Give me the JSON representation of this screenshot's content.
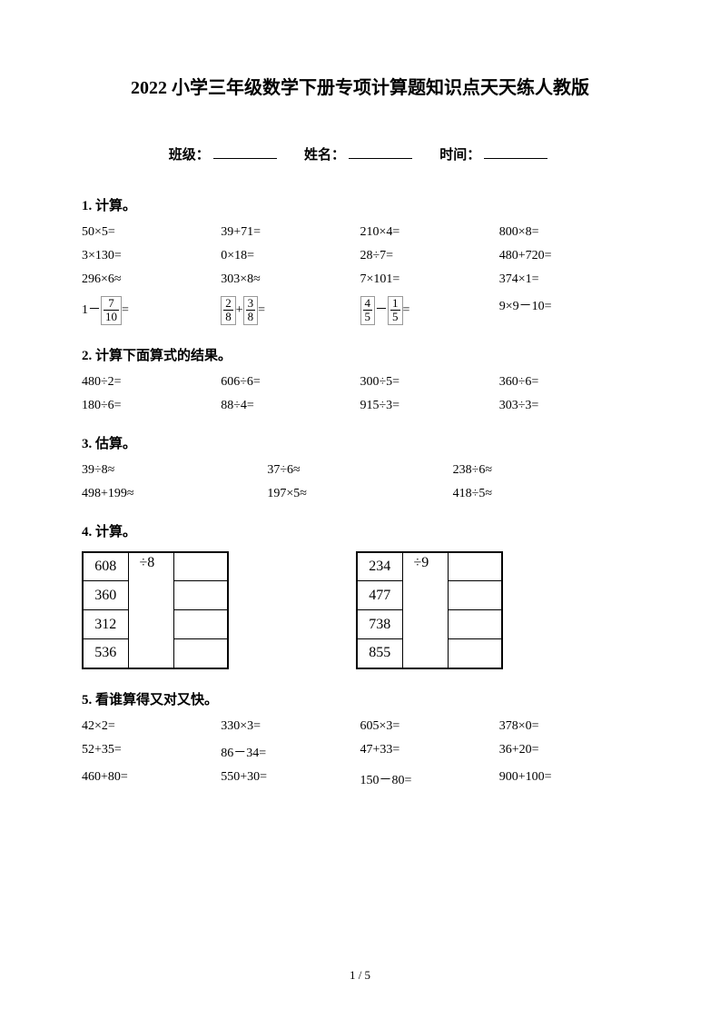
{
  "title": "2022 小学三年级数学下册专项计算题知识点天天练人教版",
  "header": {
    "class_label": "班级：",
    "name_label": "姓名：",
    "time_label": "时间："
  },
  "sections": {
    "s1": {
      "title": "1. 计算。",
      "rows": [
        [
          "50×5=",
          "39+71=",
          "210×4=",
          "800×8="
        ],
        [
          "3×130=",
          "0×18=",
          "28÷7=",
          "480+720="
        ],
        [
          "296×6≈",
          "303×8≈",
          "7×101=",
          "374×1="
        ]
      ],
      "frac_row": {
        "c1_pre": "1－",
        "c1_frac_num": "7",
        "c1_frac_den": "10",
        "c1_post": "=",
        "c2_frac1_num": "2",
        "c2_frac1_den": "8",
        "c2_mid": "+",
        "c2_frac2_num": "3",
        "c2_frac2_den": "8",
        "c2_post": "=",
        "c3_frac1_num": "4",
        "c3_frac1_den": "5",
        "c3_mid": "－",
        "c3_frac2_num": "1",
        "c3_frac2_den": "5",
        "c3_post": "=",
        "c4": "9×9－10="
      }
    },
    "s2": {
      "title": "2. 计算下面算式的结果。",
      "rows": [
        [
          "480÷2=",
          "606÷6=",
          "300÷5=",
          "360÷6="
        ],
        [
          "180÷6=",
          "88÷4=",
          "915÷3=",
          "303÷3="
        ]
      ]
    },
    "s3": {
      "title": "3. 估算。",
      "rows": [
        [
          "39÷8≈",
          "37÷6≈",
          "238÷6≈"
        ],
        [
          "498+199≈",
          "197×5≈",
          "418÷5≈"
        ]
      ]
    },
    "s4": {
      "title": "4. 计算。",
      "table1": {
        "op": "÷8",
        "values": [
          "608",
          "360",
          "312",
          "536"
        ]
      },
      "table2": {
        "op": "÷9",
        "values": [
          "234",
          "477",
          "738",
          "855"
        ]
      }
    },
    "s5": {
      "title": "5. 看谁算得又对又快。",
      "rows": [
        [
          "42×2=",
          "330×3=",
          "605×3=",
          "378×0="
        ],
        [
          "52+35=",
          "86－34=",
          "47+33=",
          "36+20="
        ],
        [
          "460+80=",
          "550+30=",
          "150－80=",
          "900+100="
        ]
      ]
    }
  },
  "footer": "1 / 5"
}
